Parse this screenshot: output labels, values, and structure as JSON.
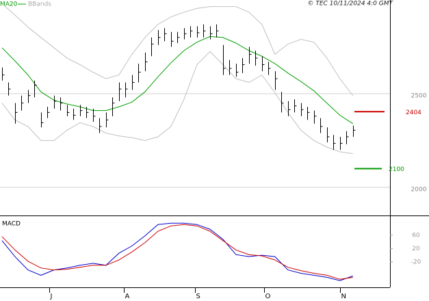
{
  "chart_data": [
    {
      "type": "ohlc",
      "credit": "© TEC 10/11/2024 4:0 GMT",
      "x": [
        0,
        2,
        4,
        6,
        8,
        10,
        12,
        14,
        16,
        18,
        20,
        22,
        24,
        26,
        28,
        30,
        32,
        34,
        36,
        38,
        40,
        42,
        44,
        46,
        48,
        50,
        52,
        54,
        56,
        58,
        60,
        62,
        64,
        66,
        68,
        70,
        72,
        74,
        76,
        78,
        80,
        82,
        84,
        86,
        88,
        90,
        92,
        94,
        96,
        98,
        100,
        102,
        104,
        106,
        108
      ],
      "high": [
        2640,
        2560,
        2450,
        2490,
        2520,
        2570,
        2400,
        2430,
        2490,
        2480,
        2440,
        2420,
        2440,
        2430,
        2420,
        2370,
        2400,
        2480,
        2560,
        2560,
        2600,
        2660,
        2720,
        2800,
        2840,
        2850,
        2830,
        2830,
        2850,
        2860,
        2860,
        2870,
        2860,
        2870,
        2760,
        2680,
        2660,
        2690,
        2750,
        2730,
        2700,
        2670,
        2620,
        2510,
        2460,
        2470,
        2450,
        2430,
        2410,
        2370,
        2320,
        2280,
        2270,
        2300,
        2330
      ],
      "low": [
        2570,
        2490,
        2340,
        2410,
        2450,
        2480,
        2320,
        2370,
        2420,
        2410,
        2380,
        2360,
        2380,
        2370,
        2350,
        2290,
        2320,
        2380,
        2460,
        2480,
        2520,
        2560,
        2620,
        2700,
        2760,
        2780,
        2750,
        2770,
        2790,
        2800,
        2800,
        2800,
        2790,
        2800,
        2600,
        2600,
        2590,
        2610,
        2660,
        2650,
        2620,
        2600,
        2520,
        2400,
        2380,
        2400,
        2380,
        2360,
        2340,
        2290,
        2240,
        2200,
        2200,
        2230,
        2270
      ],
      "close": [
        2600,
        2525,
        2400,
        2450,
        2490,
        2545,
        2345,
        2400,
        2460,
        2450,
        2400,
        2385,
        2410,
        2400,
        2380,
        2325,
        2360,
        2450,
        2525,
        2525,
        2560,
        2615,
        2670,
        2765,
        2800,
        2820,
        2780,
        2800,
        2820,
        2835,
        2825,
        2835,
        2820,
        2835,
        2635,
        2635,
        2615,
        2655,
        2710,
        2690,
        2655,
        2635,
        2580,
        2450,
        2415,
        2435,
        2415,
        2400,
        2380,
        2325,
        2270,
        2235,
        2235,
        2270,
        2305
      ],
      "color": "#000000",
      "overlay_x": [
        0,
        4,
        8,
        12,
        16,
        20,
        24,
        28,
        32,
        36,
        40,
        44,
        48,
        52,
        56,
        60,
        64,
        68,
        72,
        76,
        80,
        84,
        88,
        92,
        96,
        100,
        104,
        108
      ],
      "overlays": [
        {
          "name": "MA20",
          "color": "#00a000",
          "values": [
            2745,
            2675,
            2600,
            2510,
            2465,
            2445,
            2430,
            2410,
            2410,
            2430,
            2455,
            2510,
            2590,
            2665,
            2730,
            2775,
            2805,
            2800,
            2770,
            2730,
            2700,
            2660,
            2610,
            2565,
            2515,
            2450,
            2385,
            2340
          ]
        },
        {
          "name": "BBands",
          "color": "#c0c0c0",
          "upper": [
            2980,
            2920,
            2855,
            2800,
            2745,
            2690,
            2655,
            2615,
            2580,
            2600,
            2710,
            2800,
            2870,
            2910,
            2935,
            2955,
            2965,
            2965,
            2965,
            2935,
            2870,
            2710,
            2765,
            2790,
            2775,
            2690,
            2580,
            2490
          ],
          "lower": [
            2450,
            2360,
            2325,
            2250,
            2250,
            2305,
            2345,
            2325,
            2290,
            2275,
            2265,
            2250,
            2270,
            2325,
            2470,
            2655,
            2725,
            2655,
            2580,
            2560,
            2600,
            2505,
            2400,
            2305,
            2250,
            2215,
            2190,
            2180
          ]
        }
      ],
      "levels": [
        {
          "value": 2404,
          "color": "#cc0000"
        },
        {
          "value": 2100,
          "color": "#009900"
        }
      ],
      "xlim": [
        -0.6,
        119.4
      ],
      "ylim": [
        1850,
        3000
      ],
      "yticks": [
        2500,
        2000
      ],
      "grid": true
    },
    {
      "type": "line",
      "title": "MACD",
      "x": [
        0,
        4,
        8,
        12,
        16,
        20,
        24,
        28,
        32,
        36,
        40,
        44,
        48,
        52,
        56,
        60,
        64,
        68,
        72,
        76,
        80,
        84,
        88,
        92,
        96,
        100,
        104,
        108
      ],
      "series": [
        {
          "color": "#0000cc",
          "values": [
            44,
            -4,
            -44,
            -60,
            -44,
            -38,
            -30,
            -24,
            -30,
            6,
            28,
            58,
            92,
            96,
            96,
            92,
            78,
            48,
            2,
            -4,
            0,
            -4,
            -44,
            -54,
            -60,
            -66,
            -76,
            -62
          ]
        },
        {
          "color": "#cc0000",
          "values": [
            56,
            16,
            -18,
            -38,
            -44,
            -42,
            -36,
            -30,
            -30,
            -14,
            10,
            38,
            72,
            88,
            92,
            88,
            72,
            44,
            16,
            2,
            -2,
            -14,
            -36,
            -46,
            -54,
            -60,
            -72,
            -66
          ]
        }
      ],
      "xlim": [
        -0.6,
        119.4
      ],
      "ylim": [
        -96,
        115
      ],
      "yticks": [
        60,
        20,
        -20
      ],
      "xticks": [
        {
          "value": 14.5,
          "label": "J"
        },
        {
          "value": 37.5,
          "label": "A"
        },
        {
          "value": 59.4,
          "label": "S"
        },
        {
          "value": 80.6,
          "label": "O"
        },
        {
          "value": 104,
          "label": "N"
        }
      ]
    }
  ]
}
